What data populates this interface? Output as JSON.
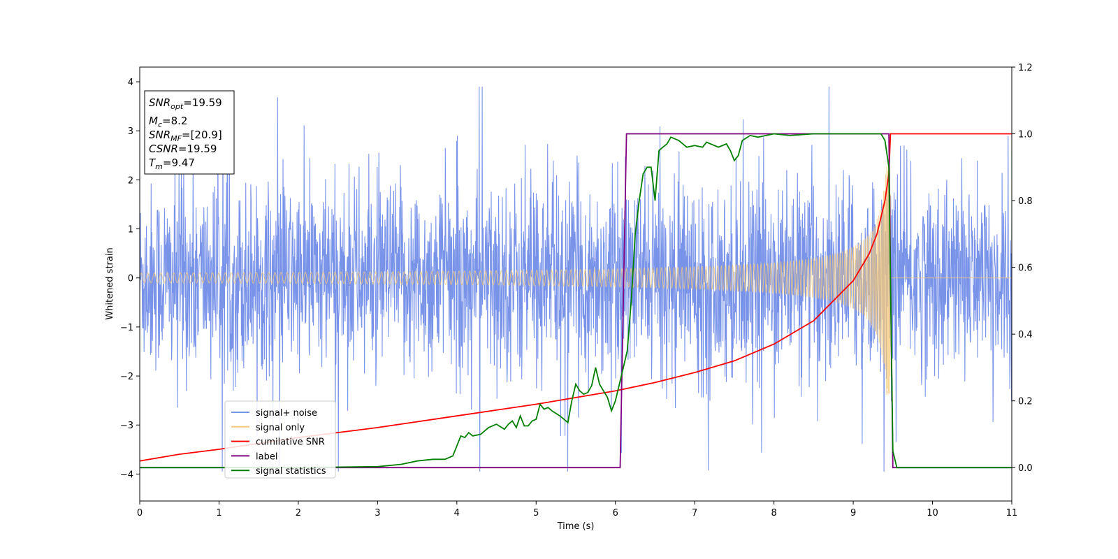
{
  "chart_data": {
    "type": "line",
    "xlabel": "Time (s)",
    "ylabel": "Whitened strain",
    "xlim": [
      0,
      11
    ],
    "ylim_left": [
      -4.55,
      4.3
    ],
    "ylim_right": [
      -0.1,
      1.2
    ],
    "xticks": [
      "0",
      "1",
      "2",
      "3",
      "4",
      "5",
      "6",
      "7",
      "8",
      "9",
      "10",
      "11"
    ],
    "yticks_left": [
      "−4",
      "−3",
      "−2",
      "−1",
      "0",
      "1",
      "2",
      "3",
      "4"
    ],
    "yticks_right": [
      "0.0",
      "0.2",
      "0.4",
      "0.6",
      "0.8",
      "1.0",
      "1.2"
    ],
    "info_box": {
      "snr_opt": {
        "symbol": "SNR",
        "sub": "opt",
        "value": "=19.59"
      },
      "mc": {
        "symbol": "M",
        "sub": "c",
        "value": "=8.2"
      },
      "snr_mf": {
        "symbol": "SNR",
        "sub": "MF",
        "value": "=[20.9]"
      },
      "csnr": {
        "symbol": "CSNR",
        "value": "=19.59"
      },
      "tm": {
        "symbol": "T",
        "sub": "m",
        "value": "=9.47"
      }
    },
    "series": [
      {
        "name": "signal+ noise",
        "axis": "left",
        "color": "#7993e9",
        "description_values": {
          "noise_range": [
            -4.0,
            3.9
          ]
        }
      },
      {
        "name": "signal only",
        "axis": "left",
        "color": "#f5c97a",
        "merger_time": 9.47
      },
      {
        "name": "cumilative SNR",
        "axis": "right",
        "color": "#ff0000",
        "x": [
          0,
          0.5,
          1,
          2,
          3,
          4,
          5,
          6,
          6.5,
          7,
          7.5,
          8,
          8.5,
          9,
          9.2,
          9.3,
          9.4,
          9.45,
          9.47,
          11
        ],
        "values": [
          0.02,
          0.04,
          0.055,
          0.09,
          0.12,
          0.155,
          0.19,
          0.23,
          0.255,
          0.285,
          0.32,
          0.37,
          0.44,
          0.56,
          0.64,
          0.7,
          0.8,
          0.88,
          1.0,
          1.0
        ]
      },
      {
        "name": "label",
        "axis": "right",
        "color": "#800080",
        "x": [
          0,
          6.06,
          6.14,
          9.45,
          9.5,
          11
        ],
        "values": [
          0,
          0,
          1,
          1,
          0,
          0
        ]
      },
      {
        "name": "signal statistics",
        "axis": "right",
        "color": "#008000",
        "x": [
          0,
          1,
          2,
          3,
          3.3,
          3.5,
          3.7,
          3.85,
          3.95,
          4.0,
          4.05,
          4.1,
          4.15,
          4.2,
          4.3,
          4.4,
          4.5,
          4.6,
          4.65,
          4.7,
          4.75,
          4.8,
          4.85,
          4.9,
          4.95,
          5.0,
          5.05,
          5.1,
          5.15,
          5.2,
          5.3,
          5.4,
          5.45,
          5.5,
          5.55,
          5.6,
          5.65,
          5.7,
          5.75,
          5.8,
          5.85,
          5.9,
          5.95,
          6.0,
          6.05,
          6.1,
          6.15,
          6.2,
          6.25,
          6.3,
          6.35,
          6.4,
          6.45,
          6.5,
          6.55,
          6.6,
          6.65,
          6.7,
          6.8,
          6.9,
          7.0,
          7.1,
          7.15,
          7.2,
          7.3,
          7.4,
          7.45,
          7.5,
          7.55,
          7.6,
          7.7,
          7.8,
          7.9,
          8.0,
          8.2,
          8.5,
          8.8,
          9.0,
          9.2,
          9.3,
          9.35,
          9.4,
          9.45,
          9.5,
          9.55,
          9.6,
          10,
          11
        ],
        "values": [
          0,
          0,
          0,
          0.003,
          0.01,
          0.02,
          0.025,
          0.025,
          0.035,
          0.065,
          0.095,
          0.09,
          0.105,
          0.095,
          0.1,
          0.12,
          0.13,
          0.115,
          0.13,
          0.14,
          0.12,
          0.155,
          0.125,
          0.125,
          0.14,
          0.145,
          0.19,
          0.175,
          0.18,
          0.17,
          0.155,
          0.135,
          0.2,
          0.25,
          0.23,
          0.22,
          0.225,
          0.245,
          0.3,
          0.25,
          0.23,
          0.21,
          0.17,
          0.2,
          0.25,
          0.3,
          0.35,
          0.5,
          0.7,
          0.8,
          0.88,
          0.9,
          0.9,
          0.8,
          0.95,
          0.96,
          0.97,
          0.99,
          0.98,
          0.96,
          0.965,
          0.96,
          0.975,
          0.97,
          0.96,
          0.97,
          0.95,
          0.92,
          0.935,
          0.98,
          0.995,
          0.99,
          0.995,
          1.0,
          0.995,
          1.0,
          1.0,
          1.0,
          1.0,
          1.0,
          1.0,
          0.98,
          0.9,
          0.05,
          0.0,
          0.0,
          0.0,
          0.0
        ]
      }
    ],
    "legend": {
      "placement": "lower-left",
      "entries": [
        "signal+ noise",
        "signal only",
        "cumilative SNR",
        "label",
        "signal statistics"
      ]
    }
  }
}
